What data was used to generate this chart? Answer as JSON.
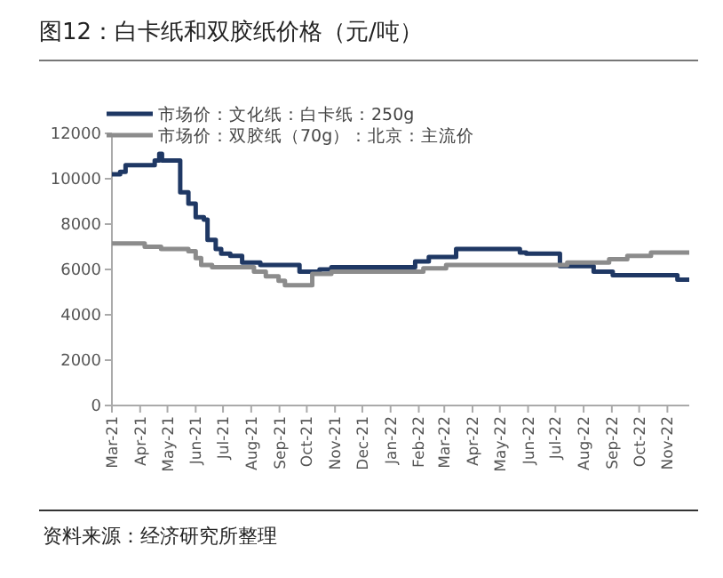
{
  "chart_data": {
    "type": "step",
    "title": "图12：白卡纸和双胶纸价格（元/吨）",
    "annotations": [
      "资料来源：经济研究所整理"
    ],
    "xlim": [
      "2021-03-01",
      "2022-11-25"
    ],
    "xticks": [
      {
        "value": "2021-03-01",
        "label": "Mar-21"
      },
      {
        "value": "2021-04-01",
        "label": "Apr-21"
      },
      {
        "value": "2021-05-01",
        "label": "May-21"
      },
      {
        "value": "2021-06-01",
        "label": "Jun-21"
      },
      {
        "value": "2021-07-01",
        "label": "Jul-21"
      },
      {
        "value": "2021-08-01",
        "label": "Aug-21"
      },
      {
        "value": "2021-09-01",
        "label": "Sep-21"
      },
      {
        "value": "2021-10-01",
        "label": "Oct-21"
      },
      {
        "value": "2021-11-01",
        "label": "Nov-21"
      },
      {
        "value": "2021-12-01",
        "label": "Dec-21"
      },
      {
        "value": "2022-01-01",
        "label": "Jan-22"
      },
      {
        "value": "2022-02-01",
        "label": "Feb-22"
      },
      {
        "value": "2022-03-01",
        "label": "Mar-22"
      },
      {
        "value": "2022-04-01",
        "label": "Apr-22"
      },
      {
        "value": "2022-05-01",
        "label": "May-22"
      },
      {
        "value": "2022-06-01",
        "label": "Jun-22"
      },
      {
        "value": "2022-07-01",
        "label": "Jul-22"
      },
      {
        "value": "2022-08-01",
        "label": "Aug-22"
      },
      {
        "value": "2022-09-01",
        "label": "Sep-22"
      },
      {
        "value": "2022-10-01",
        "label": "Oct-22"
      },
      {
        "value": "2022-11-01",
        "label": "Nov-22"
      }
    ],
    "ylim": [
      0,
      12000
    ],
    "yticks": [
      0,
      2000,
      4000,
      6000,
      8000,
      10000,
      12000
    ],
    "legend": "top left",
    "grid": false,
    "series": [
      {
        "name": "市场价：文化纸：白卡纸：250g",
        "color": "#1f3864",
        "x": [
          "2021-03-01",
          "2021-03-10",
          "2021-03-16",
          "2021-04-17",
          "2021-04-22",
          "2021-04-25",
          "2021-05-15",
          "2021-05-24",
          "2021-06-01",
          "2021-06-10",
          "2021-06-14",
          "2021-06-23",
          "2021-06-29",
          "2021-07-09",
          "2021-07-22",
          "2021-08-11",
          "2021-09-23",
          "2021-10-15",
          "2021-10-28",
          "2022-01-28",
          "2022-02-12",
          "2022-03-14",
          "2022-05-23",
          "2022-05-30",
          "2022-07-06",
          "2022-08-12",
          "2022-09-02",
          "2022-11-12",
          "2022-11-25"
        ],
        "values": [
          10200,
          10300,
          10600,
          10800,
          11100,
          10800,
          9400,
          8900,
          8300,
          8200,
          7300,
          6900,
          6700,
          6600,
          6300,
          6200,
          5900,
          6000,
          6100,
          6350,
          6550,
          6900,
          6750,
          6700,
          6150,
          5900,
          5750,
          5550,
          5550
        ]
      },
      {
        "name": "市场价：双胶纸（70g）：北京：主流价",
        "color": "#8c8c8c",
        "x": [
          "2021-03-01",
          "2021-04-06",
          "2021-04-24",
          "2021-05-24",
          "2021-06-01",
          "2021-06-07",
          "2021-06-19",
          "2021-08-04",
          "2021-08-17",
          "2021-08-31",
          "2021-09-07",
          "2021-10-07",
          "2021-10-28",
          "2022-02-06",
          "2022-03-03",
          "2022-07-14",
          "2022-08-29",
          "2022-09-18",
          "2022-10-14",
          "2022-11-25"
        ],
        "values": [
          7150,
          7000,
          6900,
          6800,
          6500,
          6200,
          6100,
          5900,
          5700,
          5500,
          5300,
          5800,
          5900,
          6050,
          6200,
          6300,
          6450,
          6600,
          6750,
          6750
        ]
      }
    ]
  }
}
